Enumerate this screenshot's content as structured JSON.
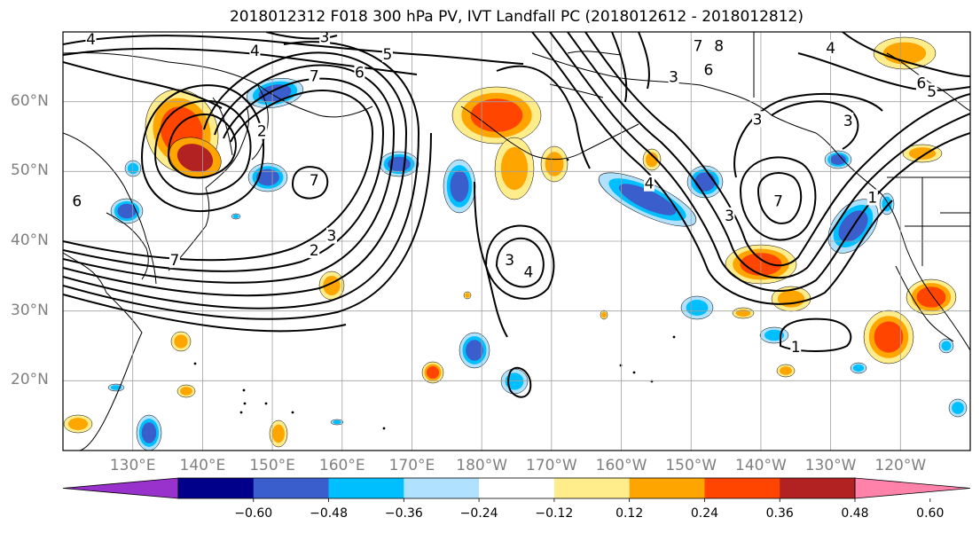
{
  "title": "2018012312 F018 300 hPa PV, IVT Landfall PC (2018012612 - 2018012812)",
  "map": {
    "projection": "PlateCarree",
    "lon_range": [
      120,
      250
    ],
    "lat_range": [
      10,
      70
    ],
    "lat_labels": [
      {
        "lat": 60,
        "text": "60°N"
      },
      {
        "lat": 50,
        "text": "50°N"
      },
      {
        "lat": 40,
        "text": "40°N"
      },
      {
        "lat": 30,
        "text": "30°N"
      },
      {
        "lat": 20,
        "text": "20°N"
      }
    ],
    "lon_labels": [
      {
        "lon": 130,
        "text": "130°E"
      },
      {
        "lon": 140,
        "text": "140°E"
      },
      {
        "lon": 150,
        "text": "150°E"
      },
      {
        "lon": 160,
        "text": "160°E"
      },
      {
        "lon": 170,
        "text": "170°E"
      },
      {
        "lon": 180,
        "text": "180°W"
      },
      {
        "lon": 190,
        "text": "170°W"
      },
      {
        "lon": 200,
        "text": "160°W"
      },
      {
        "lon": 210,
        "text": "150°W"
      },
      {
        "lon": 220,
        "text": "140°W"
      },
      {
        "lon": 230,
        "text": "130°W"
      },
      {
        "lon": 240,
        "text": "120°W"
      }
    ],
    "gridlines": true,
    "contour_labels": [
      {
        "text": "4",
        "lon": 124,
        "lat": 69.0
      },
      {
        "text": "3",
        "lon": 157.5,
        "lat": 69.3
      },
      {
        "text": "4",
        "lon": 147.5,
        "lat": 67.3
      },
      {
        "text": "5",
        "lon": 166.5,
        "lat": 66.8
      },
      {
        "text": "7",
        "lon": 156,
        "lat": 63.7
      },
      {
        "text": "6",
        "lon": 162.5,
        "lat": 64.2
      },
      {
        "text": "2",
        "lon": 148.5,
        "lat": 55.8
      },
      {
        "text": "7",
        "lon": 156,
        "lat": 48.8
      },
      {
        "text": "2",
        "lon": 156,
        "lat": 38.7
      },
      {
        "text": "3",
        "lon": 158.5,
        "lat": 40.8
      },
      {
        "text": "7",
        "lon": 136,
        "lat": 37.3
      },
      {
        "text": "3",
        "lon": 184,
        "lat": 37.3
      },
      {
        "text": "4",
        "lon": 186.7,
        "lat": 35.6
      },
      {
        "text": "7",
        "lon": 211,
        "lat": 68.0
      },
      {
        "text": "8",
        "lon": 214,
        "lat": 68.0
      },
      {
        "text": "6",
        "lon": 212.5,
        "lat": 64.6
      },
      {
        "text": "3",
        "lon": 207.5,
        "lat": 63.6
      },
      {
        "text": "3",
        "lon": 219.5,
        "lat": 57.5
      },
      {
        "text": "4",
        "lon": 204,
        "lat": 48.3
      },
      {
        "text": "3",
        "lon": 215.5,
        "lat": 43.7
      },
      {
        "text": "7",
        "lon": 222.5,
        "lat": 45.8
      },
      {
        "text": "3",
        "lon": 232.5,
        "lat": 57.3
      },
      {
        "text": "1",
        "lon": 236,
        "lat": 46.3
      },
      {
        "text": "6",
        "lon": 243,
        "lat": 62.7
      },
      {
        "text": "5",
        "lon": 244.5,
        "lat": 61.5
      },
      {
        "text": "4",
        "lon": 230,
        "lat": 67.7
      },
      {
        "text": "1",
        "lon": 225,
        "lat": 24.9
      },
      {
        "text": "6",
        "lon": 122,
        "lat": 45.8
      }
    ]
  },
  "colorbar": {
    "ticks": [
      "−0.60",
      "−0.48",
      "−0.36",
      "−0.24",
      "−0.12",
      "0.12",
      "0.24",
      "0.36",
      "0.48",
      "0.60"
    ],
    "colors": [
      "#9932cc",
      "#00008b",
      "#3a5fcd",
      "#00bfff",
      "#b0e2ff",
      "#ffffff",
      "#ffec8b",
      "#ffa500",
      "#ff4500",
      "#b22222",
      "#ff82ab"
    ],
    "extend": "both"
  }
}
